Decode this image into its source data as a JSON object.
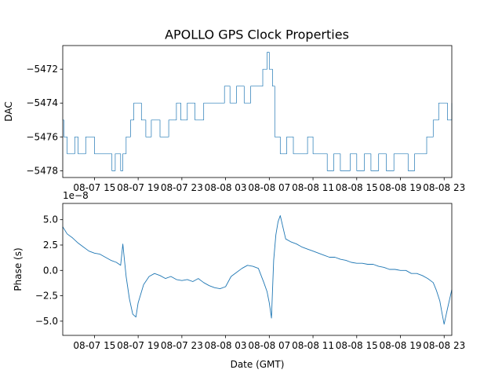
{
  "title": "APOLLO GPS Clock Properties",
  "colors": {
    "series": "#1f77b4"
  },
  "chart_data": [
    {
      "type": "line",
      "ylabel": "DAC",
      "xlabel": "",
      "y_ticks": [
        "−5472",
        "−5474",
        "−5476",
        "−5478"
      ],
      "y_tick_values": [
        -5472,
        -5474,
        -5476,
        -5478
      ],
      "ylim": [
        -5478.4,
        -5470.6
      ],
      "x_ticks": [
        "08-07 15",
        "08-07 19",
        "08-07 23",
        "08-08 03",
        "08-08 07",
        "08-08 11",
        "08-08 15",
        "08-08 19",
        "08-08 23"
      ],
      "x_tick_hours": [
        15,
        19,
        23,
        27,
        31,
        35,
        39,
        43,
        47
      ],
      "xlim_hours": [
        12.1,
        47.7
      ],
      "step": true,
      "series": [
        {
          "x_hours": [
            12.1,
            12.2,
            12.5,
            13.2,
            13.5,
            14.2,
            15.0,
            16.0,
            16.6,
            16.9,
            17.4,
            17.6,
            17.9,
            18.3,
            18.6,
            19.0,
            19.3,
            19.7,
            20.2,
            21.0,
            21.8,
            22.5,
            22.9,
            23.5,
            24.2,
            25.0,
            26.0,
            26.9,
            27.4,
            28.0,
            28.7,
            29.3,
            29.9,
            30.4,
            30.6,
            30.8,
            31.0,
            31.3,
            31.5,
            32.0,
            32.6,
            33.2,
            33.9,
            34.5,
            35.0,
            35.8,
            36.3,
            36.9,
            37.5,
            38.4,
            39.0,
            39.7,
            40.3,
            41.0,
            41.7,
            42.4,
            43.1,
            43.7,
            44.3,
            44.9,
            45.4,
            46.0,
            46.5,
            46.9,
            47.3,
            47.7
          ],
          "values": [
            -5475,
            -5476,
            -5477,
            -5476,
            -5477,
            -5476,
            -5477,
            -5477,
            -5478,
            -5477,
            -5478,
            -5477,
            -5476,
            -5475,
            -5474,
            -5474,
            -5475,
            -5476,
            -5475,
            -5476,
            -5475,
            -5474,
            -5475,
            -5474,
            -5475,
            -5474,
            -5474,
            -5473,
            -5474,
            -5473,
            -5474,
            -5473,
            -5473,
            -5472,
            -5472,
            -5471,
            -5472,
            -5473,
            -5476,
            -5477,
            -5476,
            -5477,
            -5477,
            -5476,
            -5477,
            -5477,
            -5478,
            -5477,
            -5478,
            -5477,
            -5478,
            -5477,
            -5478,
            -5477,
            -5478,
            -5477,
            -5477,
            -5478,
            -5477,
            -5477,
            -5476,
            -5475,
            -5474,
            -5474,
            -5475,
            -5474
          ]
        }
      ]
    },
    {
      "type": "line",
      "ylabel": "Phase (s)",
      "xlabel": "Date (GMT)",
      "offset_label": "1e−8",
      "y_ticks": [
        "5.0",
        "2.5",
        "0.0",
        "−2.5",
        "−5.0"
      ],
      "y_tick_values": [
        5.0,
        2.5,
        0.0,
        -2.5,
        -5.0
      ],
      "y_units": "1e-8 s",
      "ylim": [
        -6.4,
        6.6
      ],
      "x_ticks": [
        "08-07 15",
        "08-07 19",
        "08-07 23",
        "08-08 03",
        "08-08 07",
        "08-08 11",
        "08-08 15",
        "08-08 19",
        "08-08 23"
      ],
      "x_tick_hours": [
        15,
        19,
        23,
        27,
        31,
        35,
        39,
        43,
        47
      ],
      "xlim_hours": [
        12.1,
        47.7
      ],
      "series": [
        {
          "x_hours": [
            12.1,
            12.5,
            13.0,
            13.5,
            14.0,
            14.5,
            15.0,
            15.5,
            16.0,
            16.5,
            17.0,
            17.4,
            17.6,
            17.9,
            18.2,
            18.5,
            18.8,
            19.0,
            19.5,
            20.0,
            20.5,
            21.0,
            21.5,
            22.0,
            22.5,
            23.0,
            23.5,
            24.0,
            24.5,
            25.0,
            25.5,
            26.0,
            26.5,
            27.0,
            27.5,
            28.0,
            28.5,
            29.0,
            29.5,
            30.0,
            30.5,
            30.8,
            31.0,
            31.2,
            31.4,
            31.6,
            31.8,
            32.0,
            32.5,
            33.0,
            33.5,
            34.0,
            34.5,
            35.0,
            35.5,
            36.0,
            36.5,
            37.0,
            37.5,
            38.0,
            38.5,
            39.0,
            39.5,
            40.0,
            40.5,
            41.0,
            41.5,
            42.0,
            42.5,
            43.0,
            43.5,
            44.0,
            44.5,
            45.0,
            45.5,
            46.0,
            46.3,
            46.6,
            46.8,
            47.0,
            47.3,
            47.7
          ],
          "values": [
            4.3,
            3.6,
            3.2,
            2.7,
            2.3,
            1.9,
            1.7,
            1.6,
            1.3,
            1.0,
            0.8,
            0.5,
            2.6,
            -0.6,
            -2.8,
            -4.3,
            -4.6,
            -3.2,
            -1.4,
            -0.6,
            -0.3,
            -0.5,
            -0.8,
            -0.6,
            -0.9,
            -1.0,
            -0.9,
            -1.1,
            -0.8,
            -1.2,
            -1.5,
            -1.7,
            -1.8,
            -1.6,
            -0.6,
            -0.2,
            0.2,
            0.5,
            0.4,
            0.2,
            -1.2,
            -2.1,
            -3.2,
            -4.7,
            1.0,
            3.5,
            4.8,
            5.4,
            3.1,
            2.8,
            2.6,
            2.3,
            2.1,
            1.9,
            1.7,
            1.5,
            1.3,
            1.3,
            1.1,
            1.0,
            0.8,
            0.7,
            0.7,
            0.6,
            0.6,
            0.4,
            0.3,
            0.1,
            0.1,
            0.0,
            0.0,
            -0.3,
            -0.3,
            -0.5,
            -0.8,
            -1.2,
            -2.0,
            -3.0,
            -4.2,
            -5.3,
            -3.8,
            -1.9
          ]
        }
      ]
    }
  ]
}
